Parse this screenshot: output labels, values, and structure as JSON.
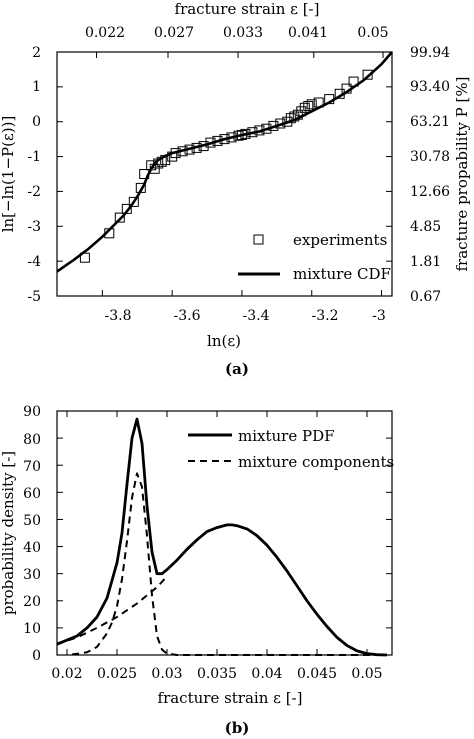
{
  "chart_data": [
    {
      "type": "scatter",
      "panel": "(a)",
      "xlabel": "ln(ε)",
      "ylabel": "ln[−ln(1−P(ε))]",
      "top_xlabel": "fracture strain ε [-]",
      "right_ylabel": "fracture propability P [%]",
      "xlim": [
        -3.93,
        -2.97
      ],
      "ylim": [
        -5,
        2
      ],
      "x_ticks": [
        -3.8,
        -3.6,
        -3.4,
        -3.2,
        -3
      ],
      "x_tick_labels": [
        "-3.8",
        "-3.6",
        "-3.4",
        "-3.2",
        "-3"
      ],
      "y_ticks": [
        -5,
        -4,
        -3,
        -2,
        -1,
        0,
        1,
        2
      ],
      "y_tick_labels": [
        "-5",
        "-4",
        "-3",
        "-2",
        "-1",
        "0",
        "1",
        "2"
      ],
      "top_ticks": [
        0.022,
        0.027,
        0.033,
        0.041,
        0.05
      ],
      "top_tick_labels": [
        "0.022",
        "0.027",
        "0.033",
        "0.041",
        "0.05"
      ],
      "right_ticks": [
        99.94,
        93.4,
        63.21,
        30.78,
        12.66,
        4.85,
        1.81,
        0.67
      ],
      "right_tick_labels": [
        "99.94",
        "93.40",
        "63.21",
        "30.78",
        "12.66",
        "4.85",
        "1.81",
        "0.67"
      ],
      "legend_position": "bottom-right",
      "series": [
        {
          "name": "experiments",
          "marker": "open-square",
          "x": [
            -3.85,
            -3.78,
            -3.75,
            -3.73,
            -3.71,
            -3.69,
            -3.68,
            -3.66,
            -3.65,
            -3.64,
            -3.63,
            -3.62,
            -3.6,
            -3.59,
            -3.57,
            -3.55,
            -3.53,
            -3.51,
            -3.49,
            -3.47,
            -3.45,
            -3.43,
            -3.41,
            -3.4,
            -3.39,
            -3.37,
            -3.35,
            -3.33,
            -3.31,
            -3.29,
            -3.27,
            -3.26,
            -3.25,
            -3.24,
            -3.23,
            -3.22,
            -3.21,
            -3.2,
            -3.18,
            -3.15,
            -3.12,
            -3.1,
            -3.08,
            -3.04
          ],
          "y": [
            -3.9,
            -3.2,
            -2.75,
            -2.5,
            -2.3,
            -1.9,
            -1.5,
            -1.25,
            -1.35,
            -1.2,
            -1.15,
            -1.1,
            -1.0,
            -0.9,
            -0.85,
            -0.8,
            -0.75,
            -0.7,
            -0.6,
            -0.55,
            -0.5,
            -0.45,
            -0.4,
            -0.38,
            -0.35,
            -0.3,
            -0.25,
            -0.2,
            -0.12,
            -0.05,
            0.0,
            0.1,
            0.15,
            0.2,
            0.3,
            0.4,
            0.45,
            0.5,
            0.55,
            0.65,
            0.8,
            0.95,
            1.15,
            1.35
          ]
        },
        {
          "name": "mixture CDF",
          "style": "solid",
          "x": [
            -3.93,
            -3.88,
            -3.84,
            -3.8,
            -3.77,
            -3.74,
            -3.72,
            -3.7,
            -3.68,
            -3.67,
            -3.66,
            -3.65,
            -3.64,
            -3.62,
            -3.6,
            -3.56,
            -3.5,
            -3.45,
            -3.4,
            -3.35,
            -3.3,
            -3.25,
            -3.2,
            -3.15,
            -3.1,
            -3.05,
            -3.0,
            -2.97
          ],
          "y": [
            -4.3,
            -3.95,
            -3.65,
            -3.3,
            -3.0,
            -2.7,
            -2.45,
            -2.15,
            -1.8,
            -1.55,
            -1.35,
            -1.2,
            -1.1,
            -0.98,
            -0.9,
            -0.8,
            -0.65,
            -0.5,
            -0.38,
            -0.28,
            -0.12,
            0.05,
            0.3,
            0.55,
            0.85,
            1.2,
            1.65,
            2.0
          ]
        }
      ]
    },
    {
      "type": "line",
      "panel": "(b)",
      "xlabel": "fracture strain ε [-]",
      "ylabel": "probability density [-]",
      "xlim": [
        0.019,
        0.0525
      ],
      "ylim": [
        0,
        90
      ],
      "x_ticks": [
        0.02,
        0.025,
        0.03,
        0.035,
        0.04,
        0.045,
        0.05
      ],
      "x_tick_labels": [
        "0.02",
        "0.025",
        "0.03",
        "0.035",
        "0.04",
        "0.045",
        "0.05"
      ],
      "y_ticks": [
        0,
        10,
        20,
        30,
        40,
        50,
        60,
        70,
        80,
        90
      ],
      "y_tick_labels": [
        "0",
        "10",
        "20",
        "30",
        "40",
        "50",
        "60",
        "70",
        "80",
        "90"
      ],
      "legend_position": "top-right",
      "series": [
        {
          "name": "mixture PDF",
          "style": "solid",
          "x": [
            0.019,
            0.021,
            0.022,
            0.023,
            0.024,
            0.025,
            0.0255,
            0.026,
            0.0265,
            0.027,
            0.0275,
            0.028,
            0.0285,
            0.029,
            0.0295,
            0.03,
            0.031,
            0.032,
            0.033,
            0.034,
            0.035,
            0.036,
            0.0365,
            0.037,
            0.038,
            0.039,
            0.04,
            0.041,
            0.042,
            0.043,
            0.044,
            0.045,
            0.046,
            0.047,
            0.048,
            0.049,
            0.05,
            0.051,
            0.052
          ],
          "y": [
            4,
            7,
            10,
            14,
            21,
            34,
            45,
            63,
            80,
            87,
            78,
            55,
            38,
            30,
            30,
            31.5,
            35,
            39,
            42.5,
            45.5,
            47,
            48,
            48,
            47.7,
            46.5,
            44,
            40.5,
            36,
            31,
            25.5,
            20,
            15,
            10.5,
            6.5,
            3.5,
            1.5,
            0.5,
            0.1,
            0
          ]
        },
        {
          "name": "mixture components",
          "style": "dashed",
          "x": [
            0.0205,
            0.022,
            0.023,
            0.024,
            0.0245,
            0.025,
            0.0255,
            0.026,
            0.0265,
            0.027,
            0.0275,
            0.028,
            0.0285,
            0.029,
            0.0295,
            0.03,
            0.031,
            0.052
          ],
          "y": [
            0.2,
            1,
            3,
            8,
            12,
            18,
            28,
            42,
            58,
            67,
            62,
            44,
            22,
            7,
            2,
            0.5,
            0,
            0
          ]
        },
        {
          "name": "mixture components",
          "style": "dashed",
          "x": [
            0.019,
            0.021,
            0.023,
            0.025,
            0.027,
            0.029,
            0.03
          ],
          "y": [
            4,
            6.5,
            10,
            14,
            19,
            25,
            29
          ]
        }
      ]
    }
  ]
}
